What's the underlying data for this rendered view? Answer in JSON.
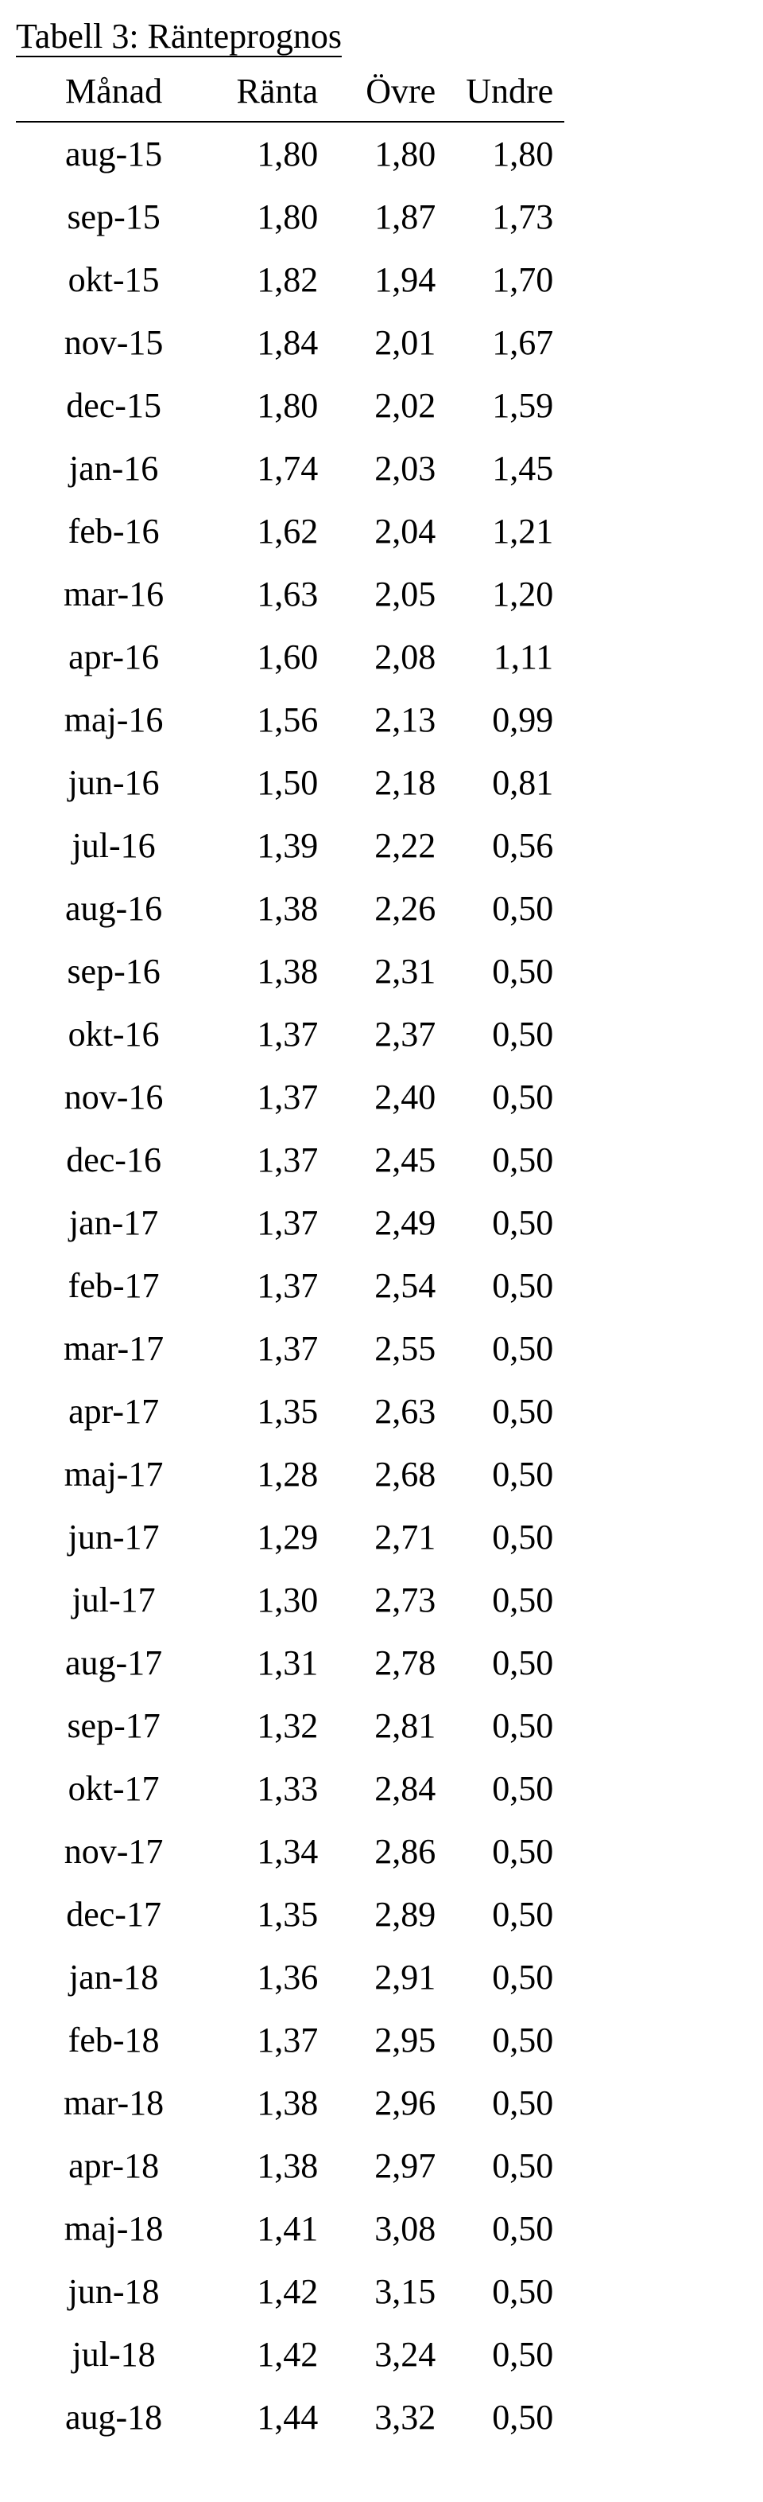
{
  "caption": "Tabell 3: Ränteprognos",
  "headers": {
    "month": "Månad",
    "ranta": "Ränta",
    "ovre": "Övre",
    "undre": "Undre"
  },
  "rows": [
    {
      "month": "aug-15",
      "ranta": "1,80",
      "ovre": "1,80",
      "undre": "1,80"
    },
    {
      "month": "sep-15",
      "ranta": "1,80",
      "ovre": "1,87",
      "undre": "1,73"
    },
    {
      "month": "okt-15",
      "ranta": "1,82",
      "ovre": "1,94",
      "undre": "1,70"
    },
    {
      "month": "nov-15",
      "ranta": "1,84",
      "ovre": "2,01",
      "undre": "1,67"
    },
    {
      "month": "dec-15",
      "ranta": "1,80",
      "ovre": "2,02",
      "undre": "1,59"
    },
    {
      "month": "jan-16",
      "ranta": "1,74",
      "ovre": "2,03",
      "undre": "1,45"
    },
    {
      "month": "feb-16",
      "ranta": "1,62",
      "ovre": "2,04",
      "undre": "1,21"
    },
    {
      "month": "mar-16",
      "ranta": "1,63",
      "ovre": "2,05",
      "undre": "1,20"
    },
    {
      "month": "apr-16",
      "ranta": "1,60",
      "ovre": "2,08",
      "undre": "1,11"
    },
    {
      "month": "maj-16",
      "ranta": "1,56",
      "ovre": "2,13",
      "undre": "0,99"
    },
    {
      "month": "jun-16",
      "ranta": "1,50",
      "ovre": "2,18",
      "undre": "0,81"
    },
    {
      "month": "jul-16",
      "ranta": "1,39",
      "ovre": "2,22",
      "undre": "0,56"
    },
    {
      "month": "aug-16",
      "ranta": "1,38",
      "ovre": "2,26",
      "undre": "0,50"
    },
    {
      "month": "sep-16",
      "ranta": "1,38",
      "ovre": "2,31",
      "undre": "0,50"
    },
    {
      "month": "okt-16",
      "ranta": "1,37",
      "ovre": "2,37",
      "undre": "0,50"
    },
    {
      "month": "nov-16",
      "ranta": "1,37",
      "ovre": "2,40",
      "undre": "0,50"
    },
    {
      "month": "dec-16",
      "ranta": "1,37",
      "ovre": "2,45",
      "undre": "0,50"
    },
    {
      "month": "jan-17",
      "ranta": "1,37",
      "ovre": "2,49",
      "undre": "0,50"
    },
    {
      "month": "feb-17",
      "ranta": "1,37",
      "ovre": "2,54",
      "undre": "0,50"
    },
    {
      "month": "mar-17",
      "ranta": "1,37",
      "ovre": "2,55",
      "undre": "0,50"
    },
    {
      "month": "apr-17",
      "ranta": "1,35",
      "ovre": "2,63",
      "undre": "0,50"
    },
    {
      "month": "maj-17",
      "ranta": "1,28",
      "ovre": "2,68",
      "undre": "0,50"
    },
    {
      "month": "jun-17",
      "ranta": "1,29",
      "ovre": "2,71",
      "undre": "0,50"
    },
    {
      "month": "jul-17",
      "ranta": "1,30",
      "ovre": "2,73",
      "undre": "0,50"
    },
    {
      "month": "aug-17",
      "ranta": "1,31",
      "ovre": "2,78",
      "undre": "0,50"
    },
    {
      "month": "sep-17",
      "ranta": "1,32",
      "ovre": "2,81",
      "undre": "0,50"
    },
    {
      "month": "okt-17",
      "ranta": "1,33",
      "ovre": "2,84",
      "undre": "0,50"
    },
    {
      "month": "nov-17",
      "ranta": "1,34",
      "ovre": "2,86",
      "undre": "0,50"
    },
    {
      "month": "dec-17",
      "ranta": "1,35",
      "ovre": "2,89",
      "undre": "0,50"
    },
    {
      "month": "jan-18",
      "ranta": "1,36",
      "ovre": "2,91",
      "undre": "0,50"
    },
    {
      "month": "feb-18",
      "ranta": "1,37",
      "ovre": "2,95",
      "undre": "0,50"
    },
    {
      "month": "mar-18",
      "ranta": "1,38",
      "ovre": "2,96",
      "undre": "0,50"
    },
    {
      "month": "apr-18",
      "ranta": "1,38",
      "ovre": "2,97",
      "undre": "0,50"
    },
    {
      "month": "maj-18",
      "ranta": "1,41",
      "ovre": "3,08",
      "undre": "0,50"
    },
    {
      "month": "jun-18",
      "ranta": "1,42",
      "ovre": "3,15",
      "undre": "0,50"
    },
    {
      "month": "jul-18",
      "ranta": "1,42",
      "ovre": "3,24",
      "undre": "0,50"
    },
    {
      "month": "aug-18",
      "ranta": "1,44",
      "ovre": "3,32",
      "undre": "0,50"
    }
  ]
}
